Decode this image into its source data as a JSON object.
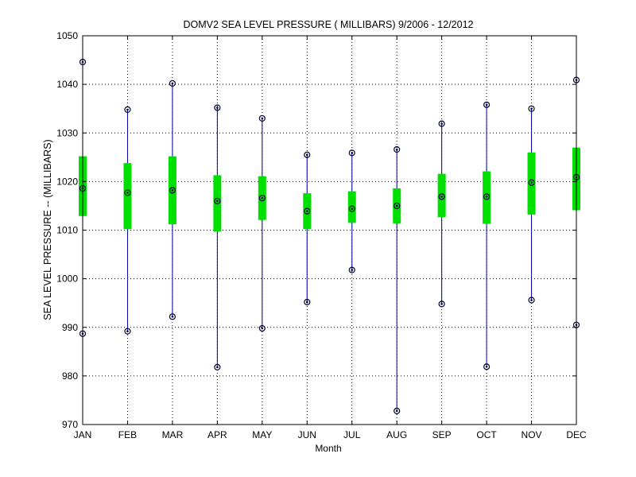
{
  "chart_data": {
    "type": "box",
    "title": "DOMV2  SEA LEVEL PRESSURE ( MILLIBARS) 9/2006 - 12/2012",
    "xlabel": "Month",
    "ylabel": "SEA LEVEL PRESSURE -- (MILLIBARS)",
    "ylim": [
      970,
      1050
    ],
    "yticks": [
      970,
      980,
      990,
      1000,
      1010,
      1020,
      1030,
      1040,
      1050
    ],
    "grid": true,
    "categories": [
      "JAN",
      "FEB",
      "MAR",
      "APR",
      "MAY",
      "JUN",
      "JUL",
      "AUG",
      "SEP",
      "OCT",
      "NOV",
      "DEC"
    ],
    "series": [
      {
        "max": [
          1044.6,
          1034.8,
          1040.2,
          1035.2,
          1033.0,
          1025.5,
          1025.9,
          1026.6,
          1031.9,
          1035.8,
          1035.0,
          1040.9
        ],
        "q3": [
          1025.2,
          1023.8,
          1025.2,
          1021.3,
          1021.1,
          1017.6,
          1018.0,
          1018.6,
          1021.6,
          1022.1,
          1026.0,
          1027.0
        ],
        "mean": [
          1018.6,
          1017.7,
          1018.2,
          1016.0,
          1016.6,
          1013.9,
          1014.4,
          1015.0,
          1016.9,
          1016.9,
          1019.8,
          1020.9
        ],
        "q1": [
          1012.9,
          1010.2,
          1011.2,
          1009.7,
          1012.1,
          1010.2,
          1011.5,
          1011.4,
          1012.7,
          1011.3,
          1013.2,
          1014.1
        ],
        "min": [
          988.7,
          989.2,
          992.2,
          981.8,
          989.8,
          995.2,
          1001.8,
          972.8,
          994.8,
          981.9,
          995.6,
          990.5
        ]
      }
    ],
    "colors": {
      "box": "#00e000",
      "whisker": "#0000aa",
      "marker": "#000033",
      "grid": "#000000",
      "axis": "#000000"
    }
  }
}
